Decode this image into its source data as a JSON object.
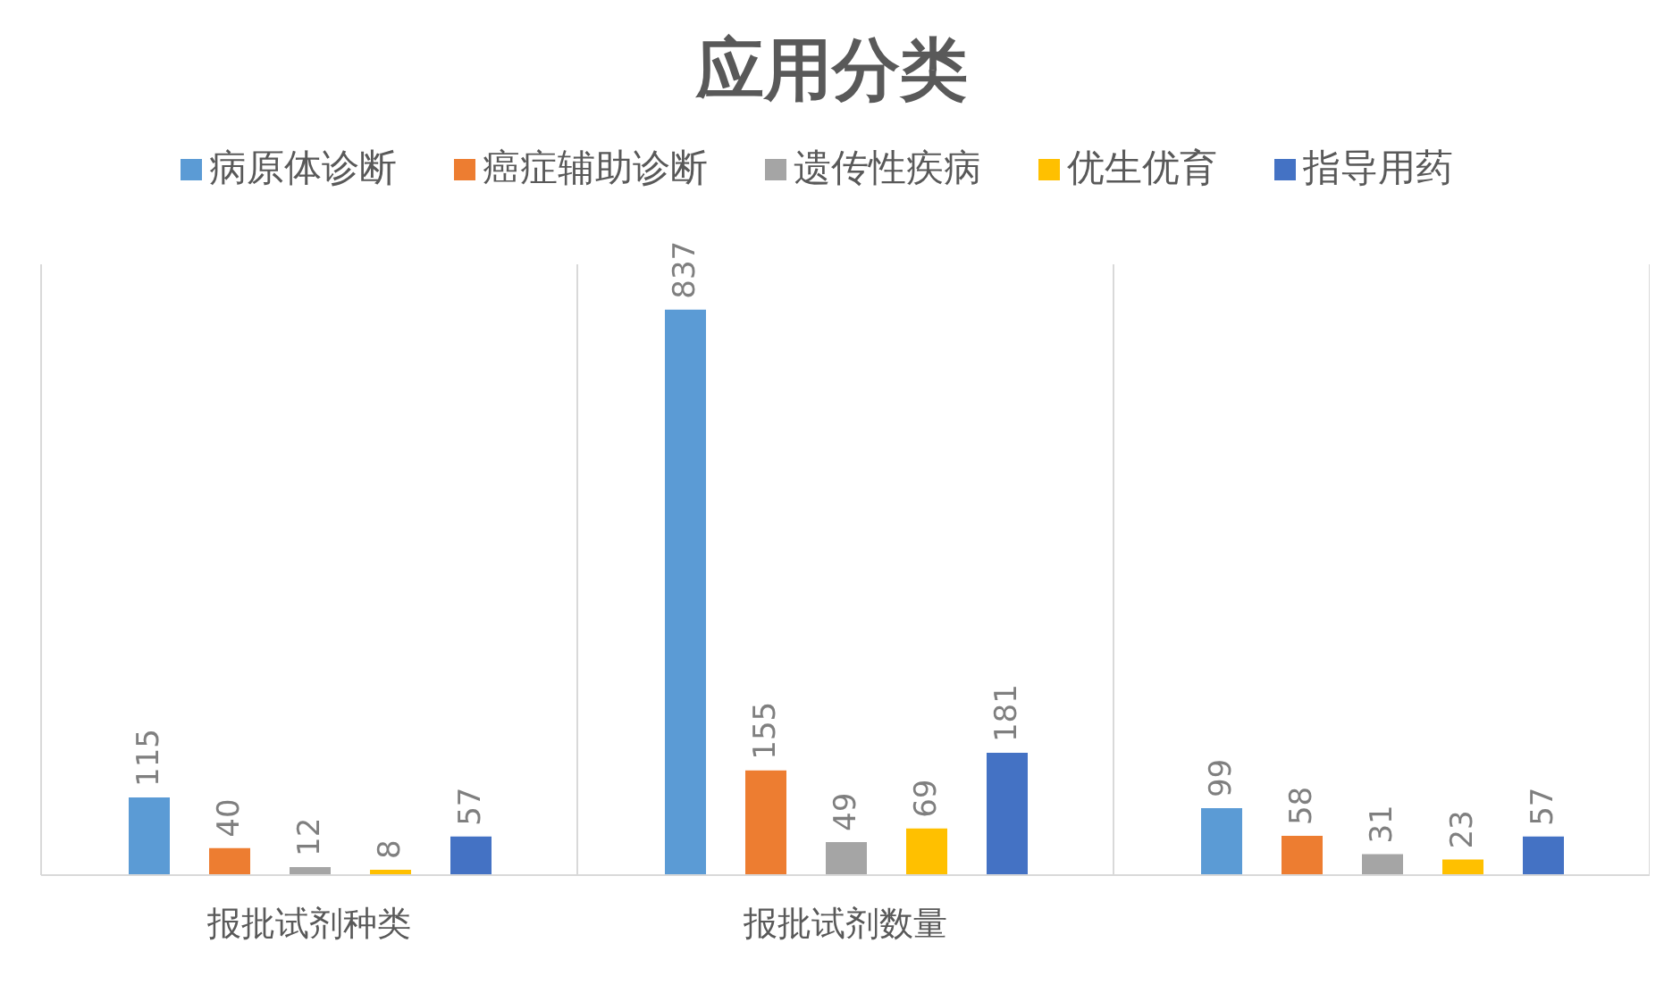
{
  "chart_data": {
    "type": "bar",
    "title": "应用分类",
    "categories": [
      "报批试剂种类",
      "报批试剂数量",
      null
    ],
    "series": [
      {
        "name": "病原体诊断",
        "color": "#5b9bd5",
        "values": [
          115,
          837,
          99
        ]
      },
      {
        "name": "癌症辅助诊断",
        "color": "#ed7d31",
        "values": [
          40,
          155,
          58
        ]
      },
      {
        "name": "遗传性疾病",
        "color": "#a5a5a5",
        "values": [
          12,
          49,
          31
        ]
      },
      {
        "name": "优生优育",
        "color": "#ffc000",
        "values": [
          8,
          69,
          23
        ]
      },
      {
        "name": "指导用药",
        "color": "#4472c4",
        "values": [
          57,
          181,
          57
        ]
      }
    ],
    "data_labels": true,
    "grid": "x",
    "legend": "top"
  }
}
